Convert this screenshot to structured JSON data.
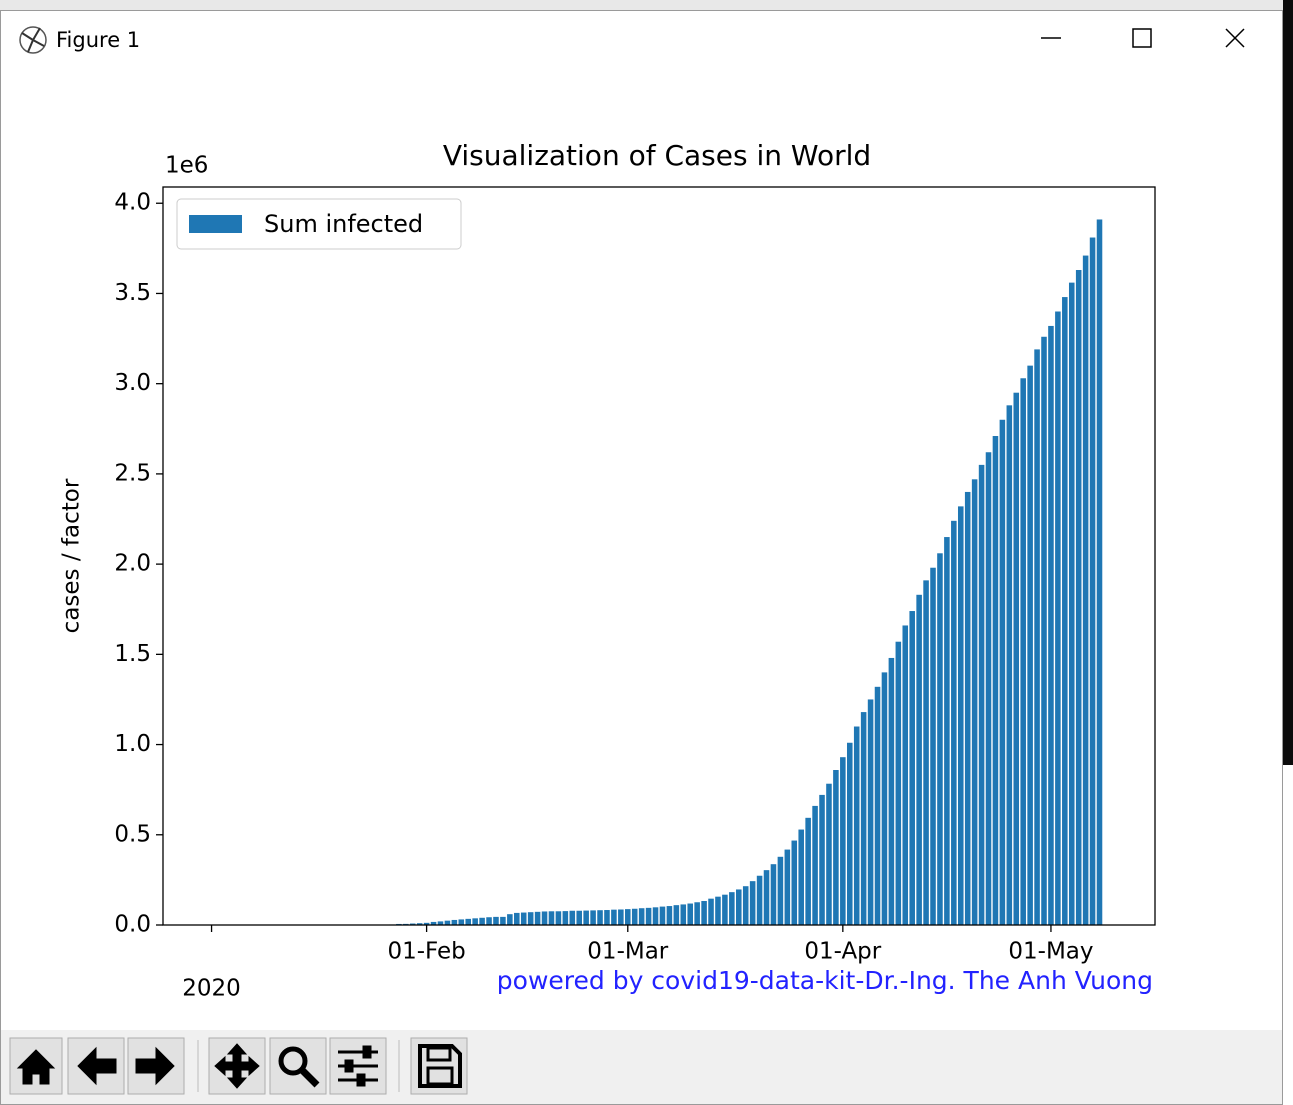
{
  "window": {
    "title": "Figure 1"
  },
  "chart_data": {
    "type": "bar",
    "title": "Visualization of Cases in World",
    "ylabel": "cases / factor",
    "y_offset_label": "1e6",
    "annotation": "powered by covid19-data-kit-Dr.-Ing. The Anh Vuong",
    "legend": "upper left",
    "grid": false,
    "xlim": [
      "2019-12-25",
      "2020-05-16"
    ],
    "xticks": [
      {
        "value": "2020-01-01",
        "label": "2020"
      },
      {
        "value": "2020-02-01",
        "label": "01-Feb"
      },
      {
        "value": "2020-03-01",
        "label": "01-Mar"
      },
      {
        "value": "2020-04-01",
        "label": "01-Apr"
      },
      {
        "value": "2020-05-01",
        "label": "01-May"
      }
    ],
    "ylim": [
      0,
      4.09
    ],
    "yticks": [
      {
        "value": 0,
        "label": "0.0"
      },
      0.5,
      {
        "value": 1,
        "label": "1.0"
      },
      1.5,
      {
        "value": 2,
        "label": "2.0"
      },
      2.5,
      {
        "value": 3,
        "label": "3.0"
      },
      3.5,
      {
        "value": 4,
        "label": "4.0"
      }
    ],
    "x": [
      "2020-01-22",
      "2020-01-23",
      "2020-01-24",
      "2020-01-25",
      "2020-01-26",
      "2020-01-27",
      "2020-01-28",
      "2020-01-29",
      "2020-01-30",
      "2020-01-31",
      "2020-02-01",
      "2020-02-02",
      "2020-02-03",
      "2020-02-04",
      "2020-02-05",
      "2020-02-06",
      "2020-02-07",
      "2020-02-08",
      "2020-02-09",
      "2020-02-10",
      "2020-02-11",
      "2020-02-12",
      "2020-02-13",
      "2020-02-14",
      "2020-02-15",
      "2020-02-16",
      "2020-02-17",
      "2020-02-18",
      "2020-02-19",
      "2020-02-20",
      "2020-02-21",
      "2020-02-22",
      "2020-02-23",
      "2020-02-24",
      "2020-02-25",
      "2020-02-26",
      "2020-02-27",
      "2020-02-28",
      "2020-02-29",
      "2020-03-01",
      "2020-03-02",
      "2020-03-03",
      "2020-03-04",
      "2020-03-05",
      "2020-03-06",
      "2020-03-07",
      "2020-03-08",
      "2020-03-09",
      "2020-03-10",
      "2020-03-11",
      "2020-03-12",
      "2020-03-13",
      "2020-03-14",
      "2020-03-15",
      "2020-03-16",
      "2020-03-17",
      "2020-03-18",
      "2020-03-19",
      "2020-03-20",
      "2020-03-21",
      "2020-03-22",
      "2020-03-23",
      "2020-03-24",
      "2020-03-25",
      "2020-03-26",
      "2020-03-27",
      "2020-03-28",
      "2020-03-29",
      "2020-03-30",
      "2020-03-31",
      "2020-04-01",
      "2020-04-02",
      "2020-04-03",
      "2020-04-04",
      "2020-04-05",
      "2020-04-06",
      "2020-04-07",
      "2020-04-08",
      "2020-04-09",
      "2020-04-10",
      "2020-04-11",
      "2020-04-12",
      "2020-04-13",
      "2020-04-14",
      "2020-04-15",
      "2020-04-16",
      "2020-04-17",
      "2020-04-18",
      "2020-04-19",
      "2020-04-20",
      "2020-04-21",
      "2020-04-22",
      "2020-04-23",
      "2020-04-24",
      "2020-04-25",
      "2020-04-26",
      "2020-04-27",
      "2020-04-28",
      "2020-04-29",
      "2020-04-30",
      "2020-05-01",
      "2020-05-02",
      "2020-05-03",
      "2020-05-04",
      "2020-05-05",
      "2020-05-06",
      "2020-05-07",
      "2020-05-08"
    ],
    "series": [
      {
        "name": "Sum infected",
        "color": "#1f77b4",
        "values": [
          0.0006,
          0.0007,
          0.0009,
          0.0014,
          0.0021,
          0.0029,
          0.0058,
          0.0062,
          0.0082,
          0.01,
          0.012,
          0.017,
          0.02,
          0.024,
          0.028,
          0.031,
          0.034,
          0.037,
          0.04,
          0.043,
          0.045,
          0.045,
          0.06,
          0.067,
          0.069,
          0.071,
          0.073,
          0.075,
          0.076,
          0.076,
          0.077,
          0.079,
          0.079,
          0.08,
          0.081,
          0.082,
          0.083,
          0.085,
          0.086,
          0.088,
          0.09,
          0.093,
          0.095,
          0.098,
          0.102,
          0.105,
          0.11,
          0.114,
          0.119,
          0.126,
          0.133,
          0.146,
          0.157,
          0.168,
          0.182,
          0.197,
          0.215,
          0.243,
          0.273,
          0.304,
          0.337,
          0.378,
          0.418,
          0.468,
          0.529,
          0.594,
          0.66,
          0.721,
          0.783,
          0.859,
          0.93,
          1.01,
          1.1,
          1.18,
          1.25,
          1.32,
          1.4,
          1.48,
          1.57,
          1.66,
          1.74,
          1.83,
          1.91,
          1.98,
          2.06,
          2.15,
          2.24,
          2.32,
          2.4,
          2.47,
          2.55,
          2.62,
          2.71,
          2.8,
          2.88,
          2.95,
          3.03,
          3.1,
          3.19,
          3.26,
          3.32,
          3.4,
          3.48,
          3.56,
          3.63,
          3.71,
          3.81,
          3.91
        ]
      }
    ]
  }
}
